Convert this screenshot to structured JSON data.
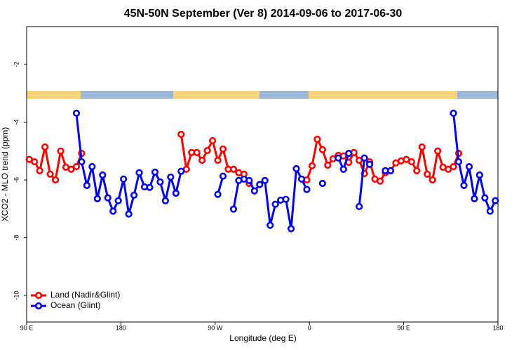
{
  "chart_data": {
    "type": "line",
    "title": "45N-50N September (Ver 8)   2014-09-06 to 2017-06-30",
    "x_label": "Longitude (deg E)",
    "y_label": "XCO2 - MLO trend (ppm)",
    "x": [
      92.5,
      97.5,
      102.5,
      107.5,
      112.5,
      117.5,
      122.5,
      127.5,
      132.5,
      137.5,
      142.5,
      147.5,
      152.5,
      157.5,
      162.5,
      167.5,
      172.5,
      177.5,
      182.5,
      187.5,
      192.5,
      197.5,
      202.5,
      207.5,
      212.5,
      217.5,
      222.5,
      227.5,
      232.5,
      237.5,
      242.5,
      247.5,
      252.5,
      257.5,
      262.5,
      267.5,
      272.5,
      277.5,
      282.5,
      287.5,
      292.5,
      297.5,
      302.5,
      307.5,
      312.5,
      317.5,
      322.5,
      327.5,
      332.5,
      337.5,
      342.5,
      347.5,
      352.5,
      357.5,
      362.5,
      367.5,
      372.5,
      377.5,
      382.5,
      387.5,
      392.5,
      397.5,
      402.5,
      407.5,
      412.5,
      417.5,
      422.5,
      427.5,
      432.5,
      437.5,
      442.5,
      447.5,
      452.5,
      457.5,
      462.5,
      467.5,
      472.5,
      477.5,
      482.5,
      487.5,
      492.5,
      497.5,
      502.5,
      507.5,
      512.5,
      517.5,
      522.5,
      527.5,
      532.5,
      537.5
    ],
    "series": [
      {
        "name": "Land (Nadir&Glint)",
        "color": "#ff0000",
        "values": [
          -5.29,
          -5.37,
          -5.68,
          -4.86,
          -5.8,
          -6.0,
          -5.0,
          -5.56,
          -5.63,
          -5.54,
          -5.08,
          null,
          null,
          null,
          null,
          null,
          null,
          null,
          null,
          null,
          null,
          null,
          null,
          null,
          null,
          null,
          null,
          null,
          null,
          -4.42,
          -5.63,
          -5.05,
          -5.05,
          -5.32,
          -4.98,
          -4.64,
          -5.32,
          -4.93,
          -5.63,
          -5.63,
          -5.75,
          -5.8,
          -6.12,
          null,
          null,
          null,
          null,
          null,
          null,
          null,
          null,
          null,
          null,
          -6.0,
          -5.51,
          -4.59,
          -4.95,
          -5.49,
          -5.27,
          -5.15,
          -5.17,
          -5.39,
          -5.05,
          -5.32,
          -5.78,
          -5.37,
          -5.97,
          -6.04,
          -5.75,
          -5.68,
          -5.41,
          -5.34,
          -5.29,
          -5.37,
          -5.68,
          -4.86,
          -5.8,
          -6.0,
          -5.0,
          -5.56,
          -5.63,
          -5.54,
          -5.08,
          null,
          null,
          null,
          null,
          null,
          null,
          null
        ]
      },
      {
        "name": "Ocean (Glint)",
        "color": "#0000ee",
        "values": [
          null,
          null,
          null,
          null,
          null,
          null,
          null,
          null,
          null,
          -3.69,
          -5.37,
          -6.19,
          -5.54,
          -6.65,
          -5.83,
          -6.62,
          -7.08,
          -6.72,
          -5.97,
          -7.18,
          -6.53,
          -5.75,
          -6.24,
          -6.26,
          -5.73,
          -6.07,
          -6.72,
          -5.9,
          -6.46,
          -5.7,
          null,
          null,
          null,
          null,
          null,
          null,
          -6.5,
          -5.87,
          null,
          -7.01,
          -6.02,
          -5.97,
          -6.02,
          -6.38,
          -6.16,
          -6.02,
          -7.57,
          -6.84,
          -6.7,
          -6.67,
          -7.69,
          -5.61,
          -5.97,
          -6.33,
          null,
          null,
          -6.12,
          null,
          null,
          -5.24,
          -5.63,
          -5.08,
          null,
          -6.92,
          -5.24,
          -5.46,
          null,
          null,
          -5.68,
          -5.68,
          null,
          null,
          null,
          null,
          null,
          null,
          null,
          null,
          null,
          null,
          null,
          -3.69,
          -5.37,
          -6.19,
          -5.54,
          -6.65,
          -5.83,
          -6.62,
          -7.08,
          -6.72
        ]
      }
    ],
    "xlim": [
      90,
      540
    ],
    "xticks": [
      {
        "value": 90,
        "label": "90 E"
      },
      {
        "value": 180,
        "label": "180"
      },
      {
        "value": 270,
        "label": "90 W"
      },
      {
        "value": 360,
        "label": "0"
      },
      {
        "value": 450,
        "label": "90 E"
      },
      {
        "value": 540,
        "label": "180"
      }
    ],
    "ylim": [
      -10.92,
      -0.69
    ],
    "yticks": [
      -2,
      -4,
      -6,
      -8,
      -10
    ],
    "legend": "bottom-left"
  }
}
